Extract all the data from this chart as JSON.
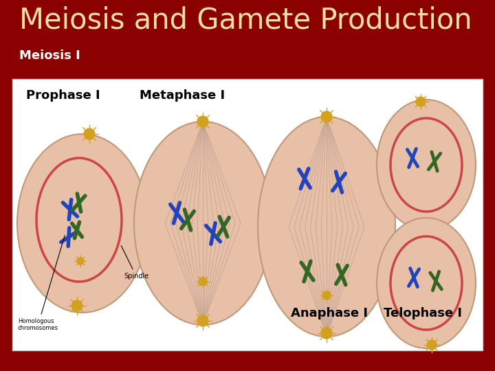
{
  "title": "Meiosis and Gamete Production",
  "subtitle": "Meiosis I",
  "title_color": "#F0DFA0",
  "subtitle_color": "#FFFFFF",
  "background_color": "#8B0000",
  "title_fontsize": 30,
  "subtitle_fontsize": 13,
  "cell_color": "#E8C0A8",
  "cell_edge_color": "#C09878",
  "nucleus_color": "#C06050",
  "spindle_color": "#C8A898",
  "centrosome_color": "#D4A020",
  "chrom_blue": "#2244BB",
  "chrom_green": "#336622",
  "label_prophase": "Prophase I",
  "label_metaphase": "Metaphase I",
  "label_anaphase": "Anaphase I",
  "label_telophase": "Telophase I",
  "label_spindle": "Spindle",
  "label_homologous": "Homologous\nchromosomes"
}
